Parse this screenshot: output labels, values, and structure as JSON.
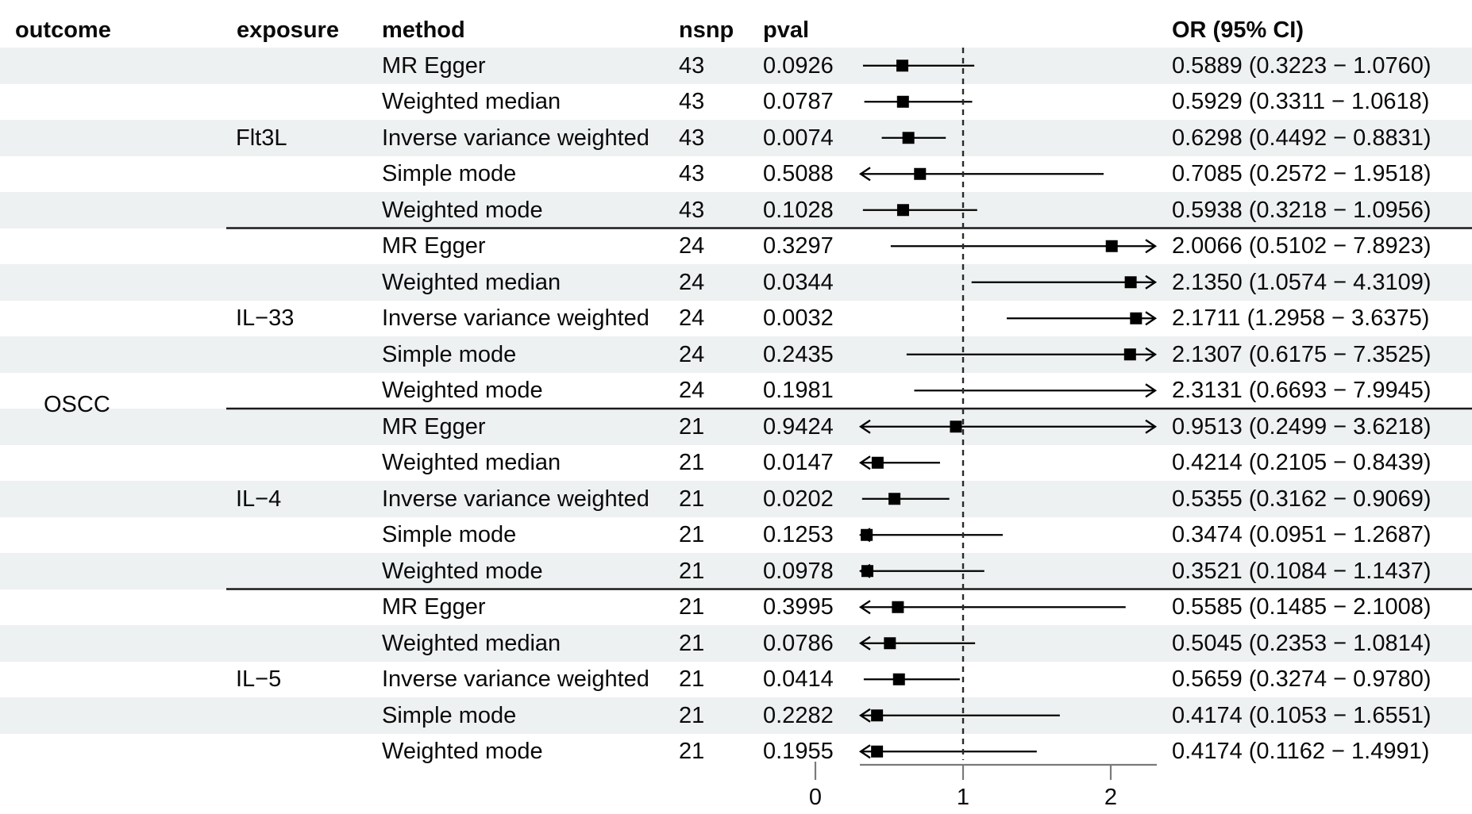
{
  "chart_data": {
    "type": "forest",
    "title": "",
    "columns": [
      "outcome",
      "exposure",
      "method",
      "nsnp",
      "pval",
      "OR (95% CI)"
    ],
    "outcome": "OSCC",
    "axis": {
      "scale": "OR",
      "ticks": [
        0,
        1,
        2
      ],
      "tick_labels": [
        "0",
        "1",
        "2"
      ],
      "ref_line": 1,
      "clip_min": 0.3,
      "clip_max": 2.31,
      "grid": false
    },
    "colors": {
      "stripe": "#eef1f1",
      "text": "#0a0a0a",
      "ci_line": "#000000",
      "marker": "#000000",
      "axis": "#7a7a7a",
      "separator": "#1a1a1a",
      "ref_line": "#2a2a2a",
      "background": "#ffffff"
    },
    "groups": [
      {
        "exposure": "Flt3L",
        "rows": [
          {
            "method": "MR Egger",
            "nsnp": "43",
            "pval": "0.0926",
            "or": 0.5889,
            "lo": 0.3223,
            "hi": 1.076,
            "or_ci": "0.5889 (0.3223 − 1.0760)"
          },
          {
            "method": "Weighted median",
            "nsnp": "43",
            "pval": "0.0787",
            "or": 0.5929,
            "lo": 0.3311,
            "hi": 1.0618,
            "or_ci": "0.5929 (0.3311 − 1.0618)"
          },
          {
            "method": "Inverse variance weighted",
            "nsnp": "43",
            "pval": "0.0074",
            "or": 0.6298,
            "lo": 0.4492,
            "hi": 0.8831,
            "or_ci": "0.6298 (0.4492 − 0.8831)"
          },
          {
            "method": "Simple mode",
            "nsnp": "43",
            "pval": "0.5088",
            "or": 0.7085,
            "lo": 0.2572,
            "hi": 1.9518,
            "or_ci": "0.7085 (0.2572 − 1.9518)"
          },
          {
            "method": "Weighted mode",
            "nsnp": "43",
            "pval": "0.1028",
            "or": 0.5938,
            "lo": 0.3218,
            "hi": 1.0956,
            "or_ci": "0.5938 (0.3218 − 1.0956)"
          }
        ]
      },
      {
        "exposure": "IL−33",
        "rows": [
          {
            "method": "MR Egger",
            "nsnp": "24",
            "pval": "0.3297",
            "or": 2.0066,
            "lo": 0.5102,
            "hi": 7.8923,
            "or_ci": "2.0066 (0.5102 − 7.8923)"
          },
          {
            "method": "Weighted median",
            "nsnp": "24",
            "pval": "0.0344",
            "or": 2.135,
            "lo": 1.0574,
            "hi": 4.3109,
            "or_ci": "2.1350 (1.0574 − 4.3109)"
          },
          {
            "method": "Inverse variance weighted",
            "nsnp": "24",
            "pval": "0.0032",
            "or": 2.1711,
            "lo": 1.2958,
            "hi": 3.6375,
            "or_ci": "2.1711 (1.2958 − 3.6375)"
          },
          {
            "method": "Simple mode",
            "nsnp": "24",
            "pval": "0.2435",
            "or": 2.1307,
            "lo": 0.6175,
            "hi": 7.3525,
            "or_ci": "2.1307 (0.6175 − 7.3525)"
          },
          {
            "method": "Weighted mode",
            "nsnp": "24",
            "pval": "0.1981",
            "or": 2.3131,
            "lo": 0.6693,
            "hi": 7.9945,
            "or_ci": "2.3131 (0.6693 − 7.9945)"
          }
        ]
      },
      {
        "exposure": "IL−4",
        "rows": [
          {
            "method": "MR Egger",
            "nsnp": "21",
            "pval": "0.9424",
            "or": 0.9513,
            "lo": 0.2499,
            "hi": 3.6218,
            "or_ci": "0.9513 (0.2499 − 3.6218)"
          },
          {
            "method": "Weighted median",
            "nsnp": "21",
            "pval": "0.0147",
            "or": 0.4214,
            "lo": 0.2105,
            "hi": 0.8439,
            "or_ci": "0.4214 (0.2105 − 0.8439)"
          },
          {
            "method": "Inverse variance weighted",
            "nsnp": "21",
            "pval": "0.0202",
            "or": 0.5355,
            "lo": 0.3162,
            "hi": 0.9069,
            "or_ci": "0.5355 (0.3162 − 0.9069)"
          },
          {
            "method": "Simple mode",
            "nsnp": "21",
            "pval": "0.1253",
            "or": 0.3474,
            "lo": 0.0951,
            "hi": 1.2687,
            "or_ci": "0.3474 (0.0951 − 1.2687)"
          },
          {
            "method": "Weighted mode",
            "nsnp": "21",
            "pval": "0.0978",
            "or": 0.3521,
            "lo": 0.1084,
            "hi": 1.1437,
            "or_ci": "0.3521 (0.1084 − 1.1437)"
          }
        ]
      },
      {
        "exposure": "IL−5",
        "rows": [
          {
            "method": "MR Egger",
            "nsnp": "21",
            "pval": "0.3995",
            "or": 0.5585,
            "lo": 0.1485,
            "hi": 2.1008,
            "or_ci": "0.5585 (0.1485 − 2.1008)"
          },
          {
            "method": "Weighted median",
            "nsnp": "21",
            "pval": "0.0786",
            "or": 0.5045,
            "lo": 0.2353,
            "hi": 1.0814,
            "or_ci": "0.5045 (0.2353 − 1.0814)"
          },
          {
            "method": "Inverse variance weighted",
            "nsnp": "21",
            "pval": "0.0414",
            "or": 0.5659,
            "lo": 0.3274,
            "hi": 0.978,
            "or_ci": "0.5659 (0.3274 − 0.9780)"
          },
          {
            "method": "Simple mode",
            "nsnp": "21",
            "pval": "0.2282",
            "or": 0.4174,
            "lo": 0.1053,
            "hi": 1.6551,
            "or_ci": "0.4174 (0.1053 − 1.6551)"
          },
          {
            "method": "Weighted mode",
            "nsnp": "21",
            "pval": "0.1955",
            "or": 0.4174,
            "lo": 0.1162,
            "hi": 1.4991,
            "or_ci": "0.4174 (0.1162 − 1.4991)"
          }
        ]
      }
    ]
  }
}
